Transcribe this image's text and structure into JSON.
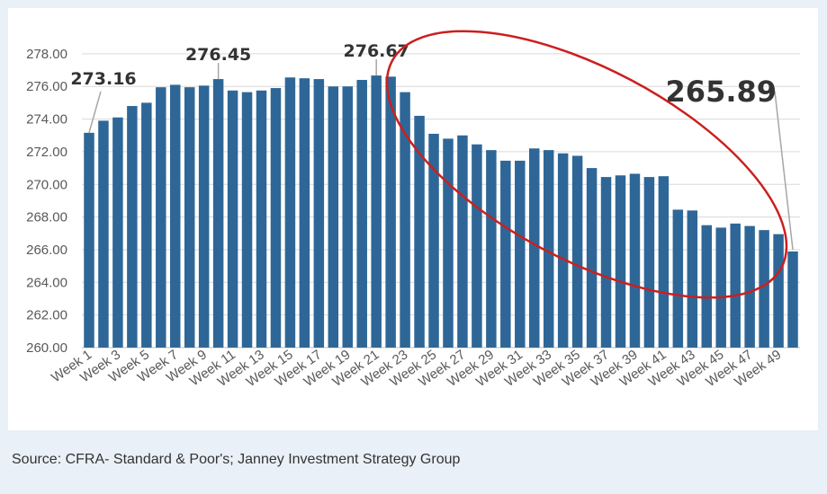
{
  "chart_data": {
    "type": "bar",
    "categories": [
      "Week 1",
      "Week 2",
      "Week 3",
      "Week 4",
      "Week 5",
      "Week 6",
      "Week 7",
      "Week 8",
      "Week 9",
      "Week 10",
      "Week 11",
      "Week 12",
      "Week 13",
      "Week 14",
      "Week 15",
      "Week 16",
      "Week 17",
      "Week 18",
      "Week 19",
      "Week 20",
      "Week 21",
      "Week 22",
      "Week 23",
      "Week 24",
      "Week 25",
      "Week 26",
      "Week 27",
      "Week 28",
      "Week 29",
      "Week 30",
      "Week 31",
      "Week 32",
      "Week 33",
      "Week 34",
      "Week 35",
      "Week 36",
      "Week 37",
      "Week 38",
      "Week 39",
      "Week 40",
      "Week 41",
      "Week 42",
      "Week 43",
      "Week 44",
      "Week 45",
      "Week 46",
      "Week 47",
      "Week 48",
      "Week 49",
      "Week 50"
    ],
    "x_tick_labels": [
      "Week 1",
      "Week 3",
      "Week 5",
      "Week 7",
      "Week 9",
      "Week 11",
      "Week 13",
      "Week 15",
      "Week 17",
      "Week 19",
      "Week 21",
      "Week 23",
      "Week 25",
      "Week 27",
      "Week 29",
      "Week 31",
      "Week 33",
      "Week 35",
      "Week 37",
      "Week 39",
      "Week 41",
      "Week 43",
      "Week 45",
      "Week 47",
      "Week 49"
    ],
    "values": [
      273.16,
      273.9,
      274.1,
      274.8,
      275.0,
      275.95,
      276.1,
      275.95,
      276.05,
      276.45,
      275.75,
      275.65,
      275.75,
      275.9,
      276.55,
      276.5,
      276.45,
      276.0,
      276.0,
      276.4,
      276.67,
      276.6,
      275.65,
      274.2,
      273.1,
      272.8,
      273.0,
      272.45,
      272.1,
      271.45,
      271.45,
      272.2,
      272.1,
      271.9,
      271.75,
      271.0,
      270.45,
      270.55,
      270.65,
      270.45,
      270.5,
      268.45,
      268.4,
      267.5,
      267.35,
      267.6,
      267.45,
      267.2,
      266.95,
      265.89
    ],
    "y_ticks": [
      "260.00",
      "262.00",
      "264.00",
      "266.00",
      "268.00",
      "270.00",
      "272.00",
      "274.00",
      "276.00",
      "278.00"
    ],
    "ylim": [
      260,
      278.5
    ],
    "grid": true,
    "bar_color": "#2e6797",
    "highlight_color": "#cc1f1f",
    "callouts": [
      {
        "label": "273.16",
        "index": 0
      },
      {
        "label": "276.45",
        "index": 9
      },
      {
        "label": "276.67",
        "index": 20
      },
      {
        "label": "265.89",
        "index": 49
      }
    ]
  },
  "source_note": "Source: CFRA- Standard & Poor's; Janney Investment Strategy Group"
}
